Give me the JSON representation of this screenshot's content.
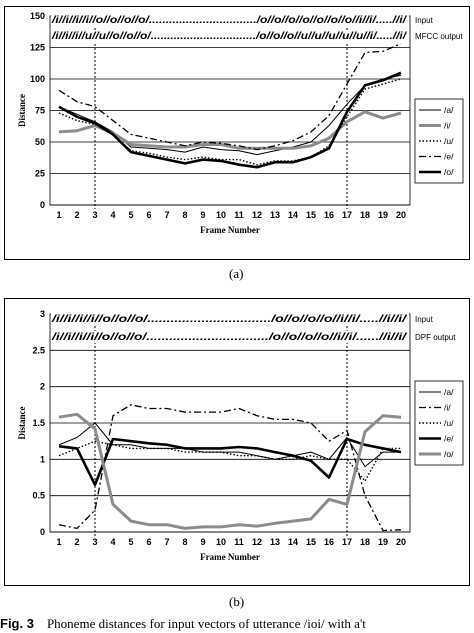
{
  "chart_data": [
    {
      "type": "line",
      "panel_label": "(a)",
      "xlabel": "Frame Number",
      "ylabel": "Distance",
      "categories": [
        1,
        2,
        3,
        4,
        5,
        6,
        7,
        8,
        9,
        10,
        11,
        12,
        13,
        14,
        15,
        16,
        17,
        18,
        19,
        20
      ],
      "y_ticks": [
        "0",
        "25",
        "50",
        "75",
        "100",
        "125",
        "150"
      ],
      "ylim": [
        0,
        150
      ],
      "grid": "horizontal",
      "legend_position": "right",
      "vlines_at_frames": [
        3,
        17
      ],
      "banners": [
        {
          "text": "/i//i//i//i//o//o//o//o/................................/o//o//o//o//o//o//o//i//i/.....//i/",
          "label": "Input"
        },
        {
          "text": "/i//i//i//u//u//o//o//o/................................/o//o//o//u//u//u//u//u//i/.....//i/",
          "label": "MFCC output"
        }
      ],
      "series": [
        {
          "name": "/a/",
          "style": "thin",
          "values": [
            78,
            72,
            66,
            58,
            46,
            45,
            44,
            42,
            46,
            44,
            43,
            40,
            43,
            46,
            50,
            63,
            80,
            95,
            100,
            103
          ]
        },
        {
          "name": "/i/",
          "style": "gray",
          "values": [
            58,
            59,
            63,
            57,
            48,
            47,
            46,
            46,
            48,
            48,
            45,
            45,
            45,
            45,
            47,
            53,
            66,
            74,
            69,
            73
          ]
        },
        {
          "name": "/u/",
          "style": "dotted",
          "values": [
            73,
            67,
            64,
            56,
            43,
            41,
            38,
            36,
            38,
            36,
            36,
            32,
            35,
            35,
            38,
            47,
            70,
            92,
            96,
            100
          ]
        },
        {
          "name": "/e/",
          "style": "dashdot",
          "values": [
            91,
            82,
            78,
            67,
            56,
            53,
            50,
            47,
            50,
            49,
            47,
            44,
            47,
            51,
            58,
            71,
            96,
            121,
            122,
            128
          ]
        },
        {
          "name": "/o/",
          "style": "thick",
          "values": [
            78,
            70,
            65,
            56,
            42,
            39,
            36,
            33,
            36,
            35,
            32,
            30,
            34,
            34,
            38,
            45,
            74,
            95,
            99,
            105
          ]
        }
      ]
    },
    {
      "type": "line",
      "panel_label": "(b)",
      "xlabel": "Frame Number",
      "ylabel": "Distance",
      "categories": [
        1,
        2,
        3,
        4,
        5,
        6,
        7,
        8,
        9,
        10,
        11,
        12,
        13,
        14,
        15,
        16,
        17,
        18,
        19,
        20
      ],
      "y_ticks": [
        "0",
        "0.5",
        "1",
        "1.5",
        "2",
        "2.5",
        "3"
      ],
      "ylim": [
        0,
        3
      ],
      "grid": "horizontal",
      "legend_position": "right",
      "vlines_at_frames": [
        3,
        17
      ],
      "banners": [
        {
          "text": "/i//i//i//i//o//o//o/................................/o//o//o//o//i//i/.....//i//i/",
          "label": "Input"
        },
        {
          "text": "/i//i//i//i//o//o//o/................................/o//o//o//o//i//i/......//i//i/",
          "label": "DPF output"
        }
      ],
      "series": [
        {
          "name": "/a/",
          "style": "thin",
          "values": [
            1.2,
            1.3,
            1.5,
            1.2,
            1.2,
            1.15,
            1.15,
            1.15,
            1.1,
            1.1,
            1.1,
            1.05,
            1.0,
            1.05,
            1.1,
            1.0,
            1.3,
            0.9,
            1.1,
            1.1
          ]
        },
        {
          "name": "/i/",
          "style": "dashdot",
          "values": [
            0.1,
            0.05,
            0.3,
            1.6,
            1.75,
            1.7,
            1.7,
            1.65,
            1.65,
            1.65,
            1.7,
            1.6,
            1.55,
            1.55,
            1.5,
            1.25,
            1.4,
            0.5,
            0.02,
            0.03
          ]
        },
        {
          "name": "/u/",
          "style": "dotted",
          "values": [
            1.05,
            1.15,
            1.25,
            1.2,
            1.15,
            1.15,
            1.15,
            1.1,
            1.1,
            1.1,
            1.05,
            1.05,
            1.0,
            1.0,
            1.05,
            1.0,
            1.0,
            0.7,
            1.15,
            1.15
          ]
        },
        {
          "name": "/e/",
          "style": "thick",
          "values": [
            1.18,
            1.15,
            0.65,
            1.28,
            1.25,
            1.22,
            1.2,
            1.15,
            1.15,
            1.15,
            1.17,
            1.15,
            1.1,
            1.05,
            0.98,
            0.75,
            1.28,
            1.2,
            1.15,
            1.1
          ]
        },
        {
          "name": "/o/",
          "style": "gray",
          "values": [
            1.58,
            1.62,
            1.42,
            0.38,
            0.15,
            0.1,
            0.1,
            0.05,
            0.07,
            0.07,
            0.1,
            0.08,
            0.12,
            0.15,
            0.18,
            0.45,
            0.38,
            1.38,
            1.6,
            1.58
          ]
        }
      ]
    }
  ],
  "caption": {
    "label": "Fig. 3",
    "text": "Phoneme distances for input vectors of utterance /ioi/ with a't"
  }
}
